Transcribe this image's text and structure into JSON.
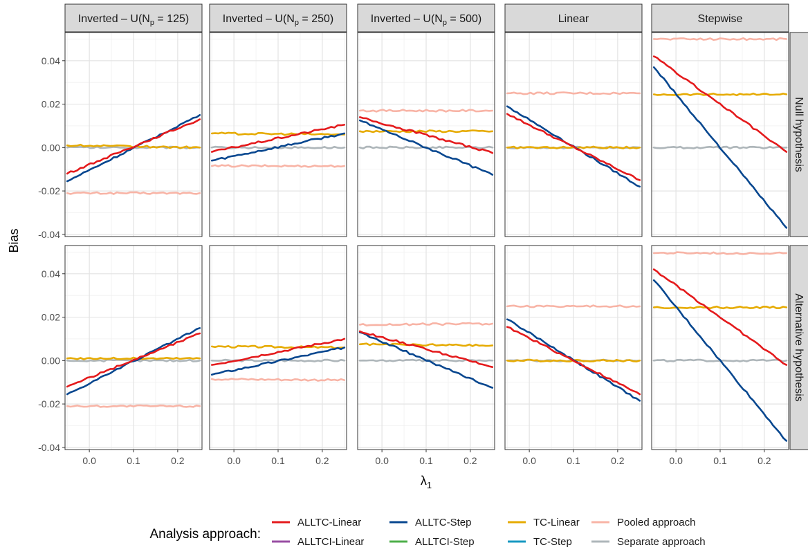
{
  "chart_data": {
    "type": "line",
    "facet_columns": [
      {
        "label": "Inverted – U(N",
        "sub": "p",
        "suffix": " = 125)"
      },
      {
        "label": "Inverted – U(N",
        "sub": "p",
        "suffix": " = 250)"
      },
      {
        "label": "Inverted – U(N",
        "sub": "p",
        "suffix": " = 500)"
      },
      {
        "label": "Linear",
        "sub": "",
        "suffix": ""
      },
      {
        "label": "Stepwise",
        "sub": "",
        "suffix": ""
      }
    ],
    "facet_rows": [
      "Null hypothesis",
      "Alternative hypothesis"
    ],
    "xlabel": "λ",
    "xlabel_sub": "1",
    "ylabel": "Bias",
    "xlim": [
      -0.055,
      0.255
    ],
    "ylim": [
      -0.041,
      0.053
    ],
    "xticks": [
      0.0,
      0.1,
      0.2
    ],
    "xtick_labels": [
      "0.0",
      "0.1",
      "0.2"
    ],
    "yticks": [
      -0.04,
      -0.02,
      0.0,
      0.02,
      0.04
    ],
    "ytick_labels": [
      "-0.04",
      "-0.02",
      "0.00",
      "0.02",
      "0.04"
    ],
    "grid": true,
    "legend": {
      "title": "Analysis approach:",
      "position": "bottom",
      "entries": [
        {
          "name": "ALLTC-Linear",
          "color": "#E41A1C"
        },
        {
          "name": "ALLTCI-Linear",
          "color": "#984EA3"
        },
        {
          "name": "ALLTC-Step",
          "color": "#08478F"
        },
        {
          "name": "ALLTCI-Step",
          "color": "#4DAF4A"
        },
        {
          "name": "TC-Linear",
          "color": "#E6AB02"
        },
        {
          "name": "TC-Step",
          "color": "#1798C2"
        },
        {
          "name": "Pooled approach",
          "color": "#F8B4A6"
        },
        {
          "name": "Separate approach",
          "color": "#AEB6BA"
        }
      ]
    },
    "draw_order": [
      "Pooled approach",
      "Separate approach",
      "TC-Linear",
      "ALLTC-Step",
      "ALLTC-Linear"
    ],
    "x": [
      -0.05,
      0.25
    ],
    "panels": [
      {
        "row": 0,
        "col": 0,
        "series": [
          {
            "name": "Pooled approach",
            "y": [
              -0.021,
              -0.021
            ]
          },
          {
            "name": "Separate approach",
            "y": [
              0.0,
              0.0
            ]
          },
          {
            "name": "TC-Linear",
            "y": [
              0.001,
              0.0
            ]
          },
          {
            "name": "ALLTC-Step",
            "y": [
              -0.0155,
              0.015
            ]
          },
          {
            "name": "ALLTC-Linear",
            "y": [
              -0.012,
              0.013
            ]
          }
        ]
      },
      {
        "row": 0,
        "col": 1,
        "series": [
          {
            "name": "Pooled approach",
            "y": [
              -0.0085,
              -0.0085
            ]
          },
          {
            "name": "Separate approach",
            "y": [
              0.0,
              0.0
            ]
          },
          {
            "name": "TC-Linear",
            "y": [
              0.0065,
              0.006
            ]
          },
          {
            "name": "ALLTC-Step",
            "y": [
              -0.006,
              0.0065
            ]
          },
          {
            "name": "ALLTC-Linear",
            "y": [
              -0.002,
              0.0105
            ]
          }
        ]
      },
      {
        "row": 0,
        "col": 2,
        "series": [
          {
            "name": "Pooled approach",
            "y": [
              0.017,
              0.017
            ]
          },
          {
            "name": "Separate approach",
            "y": [
              0.0,
              0.0
            ]
          },
          {
            "name": "TC-Linear",
            "y": [
              0.0075,
              0.0075
            ]
          },
          {
            "name": "ALLTC-Step",
            "y": [
              0.0125,
              -0.0125
            ]
          },
          {
            "name": "ALLTC-Linear",
            "y": [
              0.014,
              -0.0025
            ]
          }
        ]
      },
      {
        "row": 0,
        "col": 3,
        "series": [
          {
            "name": "Pooled approach",
            "y": [
              0.025,
              0.025
            ]
          },
          {
            "name": "Separate approach",
            "y": [
              0.0,
              0.0
            ]
          },
          {
            "name": "TC-Linear",
            "y": [
              0.0,
              0.0
            ]
          },
          {
            "name": "ALLTC-Step",
            "y": [
              0.019,
              -0.018
            ]
          },
          {
            "name": "ALLTC-Linear",
            "y": [
              0.0155,
              -0.015
            ]
          }
        ]
      },
      {
        "row": 0,
        "col": 4,
        "series": [
          {
            "name": "Pooled approach",
            "y": [
              0.05,
              0.05
            ]
          },
          {
            "name": "Separate approach",
            "y": [
              0.0,
              0.0
            ]
          },
          {
            "name": "TC-Linear",
            "y": [
              0.0245,
              0.0245
            ]
          },
          {
            "name": "ALLTC-Step",
            "y": [
              0.037,
              -0.037
            ]
          },
          {
            "name": "ALLTC-Linear",
            "y": [
              0.042,
              -0.002
            ]
          }
        ]
      },
      {
        "row": 1,
        "col": 0,
        "series": [
          {
            "name": "Pooled approach",
            "y": [
              -0.021,
              -0.021
            ]
          },
          {
            "name": "Separate approach",
            "y": [
              0.0,
              0.0
            ]
          },
          {
            "name": "TC-Linear",
            "y": [
              0.001,
              0.001
            ]
          },
          {
            "name": "ALLTC-Step",
            "y": [
              -0.0155,
              0.015
            ]
          },
          {
            "name": "ALLTC-Linear",
            "y": [
              -0.012,
              0.0125
            ]
          }
        ]
      },
      {
        "row": 1,
        "col": 1,
        "series": [
          {
            "name": "Pooled approach",
            "y": [
              -0.0085,
              -0.009
            ]
          },
          {
            "name": "Separate approach",
            "y": [
              0.0,
              0.0
            ]
          },
          {
            "name": "TC-Linear",
            "y": [
              0.0065,
              0.006
            ]
          },
          {
            "name": "ALLTC-Step",
            "y": [
              -0.0065,
              0.006
            ]
          },
          {
            "name": "ALLTC-Linear",
            "y": [
              -0.002,
              0.01
            ]
          }
        ]
      },
      {
        "row": 1,
        "col": 2,
        "series": [
          {
            "name": "Pooled approach",
            "y": [
              0.0165,
              0.017
            ]
          },
          {
            "name": "Separate approach",
            "y": [
              0.0,
              0.0
            ]
          },
          {
            "name": "TC-Linear",
            "y": [
              0.0075,
              0.007
            ]
          },
          {
            "name": "ALLTC-Step",
            "y": [
              0.013,
              -0.0125
            ]
          },
          {
            "name": "ALLTC-Linear",
            "y": [
              0.0135,
              -0.003
            ]
          }
        ]
      },
      {
        "row": 1,
        "col": 3,
        "series": [
          {
            "name": "Pooled approach",
            "y": [
              0.025,
              0.025
            ]
          },
          {
            "name": "Separate approach",
            "y": [
              0.0,
              0.0
            ]
          },
          {
            "name": "TC-Linear",
            "y": [
              0.0,
              0.0
            ]
          },
          {
            "name": "ALLTC-Step",
            "y": [
              0.019,
              -0.0185
            ]
          },
          {
            "name": "ALLTC-Linear",
            "y": [
              0.0155,
              -0.0155
            ]
          }
        ]
      },
      {
        "row": 1,
        "col": 4,
        "series": [
          {
            "name": "Pooled approach",
            "y": [
              0.0495,
              0.0495
            ]
          },
          {
            "name": "Separate approach",
            "y": [
              0.0,
              0.0
            ]
          },
          {
            "name": "TC-Linear",
            "y": [
              0.0245,
              0.0245
            ]
          },
          {
            "name": "ALLTC-Step",
            "y": [
              0.037,
              -0.037
            ]
          },
          {
            "name": "ALLTC-Linear",
            "y": [
              0.042,
              -0.002
            ]
          }
        ]
      }
    ]
  }
}
